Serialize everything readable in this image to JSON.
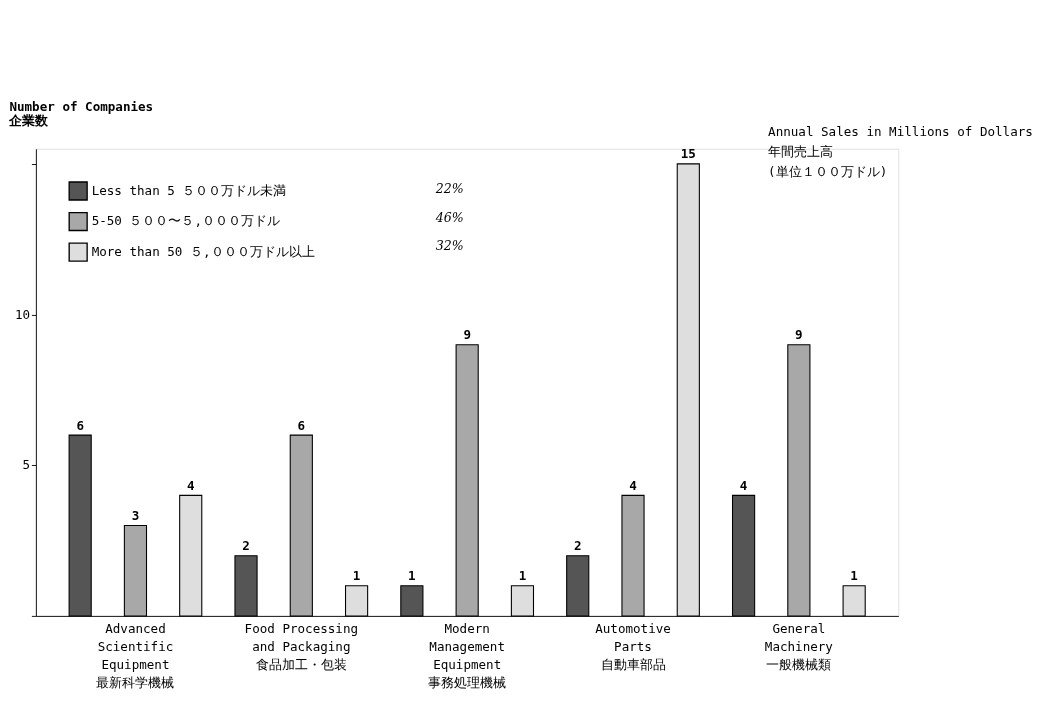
{
  "chart_data": {
    "type": "bar",
    "ylabel": "Number of Companies\n企業数",
    "legend_title": "Annual Sales in Millions of Dollars\n年間売上高\n(単位１００万ドル)",
    "categories": [
      "Advanced\nScientific\nEquipment\n最新科学機械",
      "Food Processing\nand Packaging\n食品加工・包装",
      "Modern\nManagement\nEquipment\n事務処理機械",
      "Automotive\nParts\n自動車部品",
      "General\nMachinery\n一般機械類"
    ],
    "series": [
      {
        "name": "Less than 5  ５００万ドル未満",
        "color": "#555555",
        "values": [
          6,
          2,
          1,
          2,
          4
        ]
      },
      {
        "name": "5-50  ５００〜５,０００万ドル",
        "color": "#a8a8a8",
        "values": [
          3,
          6,
          9,
          4,
          9
        ]
      },
      {
        "name": "More than 50  ５,０００万ドル以上",
        "color": "#dedede",
        "values": [
          4,
          1,
          1,
          15,
          1
        ]
      }
    ],
    "ylim": [
      0,
      15.5
    ],
    "yticks": [
      {
        "value": 0,
        "label": null
      },
      5,
      10,
      {
        "value": 15,
        "label": null
      }
    ],
    "data_labels": true,
    "legend": "top left",
    "grid": false,
    "annotations": [
      "22%",
      "46%",
      "32%"
    ]
  }
}
